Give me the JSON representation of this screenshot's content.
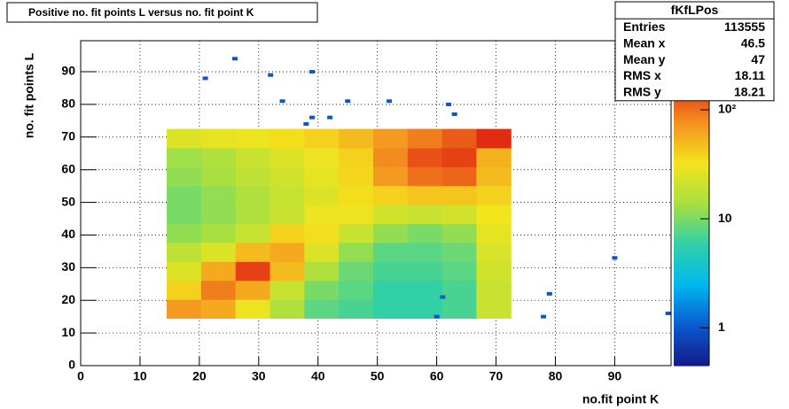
{
  "chart_data": {
    "type": "heatmap",
    "title": "Positive no. fit points L versus no. fit point K",
    "x_label": "no.fit point K",
    "y_label": "no. fit points  L",
    "xlim": [
      0,
      99.5
    ],
    "ylim": [
      0,
      99.5
    ],
    "xticks": [
      0,
      10,
      20,
      30,
      40,
      50,
      60,
      70,
      80,
      90
    ],
    "yticks": [
      0,
      10,
      20,
      30,
      40,
      50,
      60,
      70,
      80,
      90
    ],
    "grid": true,
    "xbins": [
      14.5,
      20.3,
      26.1,
      31.9,
      37.7,
      43.5,
      49.3,
      55.1,
      60.9,
      66.7,
      72.5
    ],
    "ybins": [
      14.5,
      20.3,
      26.1,
      31.9,
      37.7,
      43.5,
      49.3,
      55.1,
      60.9,
      66.7,
      72.5
    ],
    "values": [
      [
        70,
        60,
        30,
        15,
        8,
        7,
        6,
        6,
        7,
        20
      ],
      [
        40,
        90,
        60,
        20,
        10,
        8,
        6,
        6,
        7,
        20
      ],
      [
        25,
        60,
        150,
        50,
        15,
        9,
        7,
        7,
        8,
        22
      ],
      [
        18,
        25,
        50,
        60,
        25,
        12,
        8,
        8,
        9,
        24
      ],
      [
        12,
        14,
        20,
        40,
        35,
        20,
        12,
        10,
        12,
        28
      ],
      [
        10,
        12,
        15,
        20,
        30,
        30,
        22,
        20,
        22,
        32
      ],
      [
        10,
        12,
        15,
        20,
        25,
        35,
        40,
        45,
        45,
        40
      ],
      [
        12,
        14,
        18,
        22,
        28,
        38,
        70,
        100,
        110,
        50
      ],
      [
        13,
        15,
        20,
        25,
        30,
        40,
        80,
        130,
        150,
        55
      ],
      [
        25,
        28,
        30,
        35,
        40,
        50,
        70,
        90,
        120,
        180
      ]
    ],
    "points": {
      "x": [
        21,
        26,
        32,
        34,
        38,
        39,
        39,
        42,
        45,
        52,
        62,
        63,
        78,
        79,
        90,
        99,
        60,
        61
      ],
      "y": [
        88,
        94,
        89,
        81,
        74,
        76,
        90,
        76,
        81,
        81,
        80,
        77,
        15,
        22,
        33,
        16,
        15,
        21
      ],
      "values": [
        1,
        1,
        1,
        1,
        1,
        1,
        1,
        1,
        1,
        1,
        1,
        1,
        1,
        1,
        1,
        1,
        1,
        1
      ]
    },
    "zlim": [
      0.45,
      430
    ],
    "zlog": true,
    "zticks": [
      1,
      10,
      {
        "value": 100,
        "label": "10²"
      }
    ],
    "colorscale": [
      "#141a86",
      "#0a5ad0",
      "#00b8f0",
      "#30d0a8",
      "#a8e040",
      "#f4e41c",
      "#f49020",
      "#e02a10",
      "#800000"
    ],
    "stats": {
      "title": "fKfLPos",
      "rows": [
        {
          "label": "Entries",
          "value": 113555
        },
        {
          "label": "Mean x",
          "value": 46.5
        },
        {
          "label": "Mean y",
          "value": 47
        },
        {
          "label": "RMS x",
          "value": 18.11
        },
        {
          "label": "RMS y",
          "value": 18.21
        }
      ]
    }
  }
}
